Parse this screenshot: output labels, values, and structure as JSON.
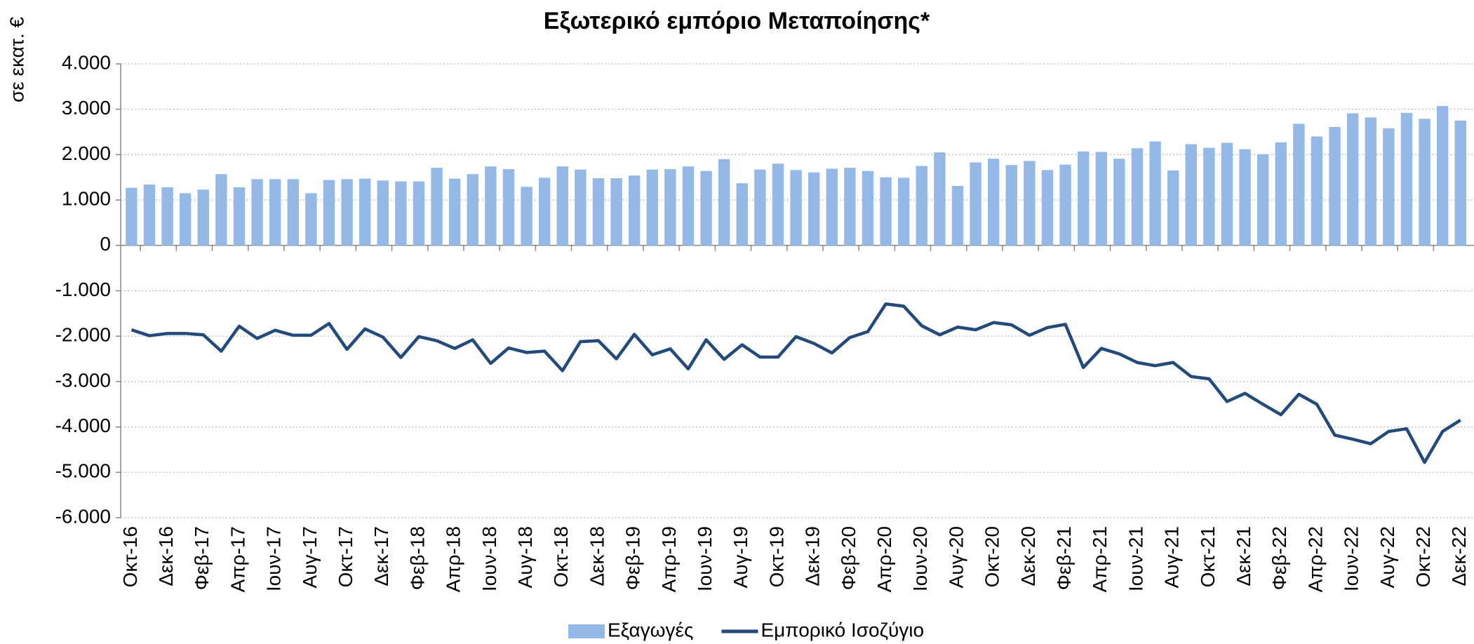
{
  "chart_data": {
    "type": "bar_line",
    "title": "Εξωτερικό εμπόριο Μεταποίησης*",
    "y_label": "σε εκατ. €",
    "categories": [
      "Οκτ-16",
      null,
      "Δεκ-16",
      null,
      "Φεβ-17",
      null,
      "Απρ-17",
      null,
      "Ιουν-17",
      null,
      "Αυγ-17",
      null,
      "Οκτ-17",
      null,
      "Δεκ-17",
      null,
      "Φεβ-18",
      null,
      "Απρ-18",
      null,
      "Ιουν-18",
      null,
      "Αυγ-18",
      null,
      "Οκτ-18",
      null,
      "Δεκ-18",
      null,
      "Φεβ-19",
      null,
      "Απρ-19",
      null,
      "Ιουν-19",
      null,
      "Αυγ-19",
      null,
      "Οκτ-19",
      null,
      "Δεκ-19",
      null,
      "Φεβ-20",
      null,
      "Απρ-20",
      null,
      "Ιουν-20",
      null,
      "Αυγ-20",
      null,
      "Οκτ-20",
      null,
      "Δεκ-20",
      null,
      "Φεβ-21",
      null,
      "Απρ-21",
      null,
      "Ιουν-21",
      null,
      "Αυγ-21",
      null,
      "Οκτ-21",
      null,
      "Δεκ-21",
      null,
      "Φεβ-22",
      null,
      "Απρ-22",
      null,
      "Ιουν-22",
      null,
      "Αυγ-22",
      null,
      "Οκτ-22",
      null,
      "Δεκ-22"
    ],
    "series": [
      {
        "name": "Εξαγωγές",
        "kind": "bar",
        "color": "#95b9e6",
        "values": [
          1270,
          1340,
          1280,
          1150,
          1230,
          1570,
          1280,
          1460,
          1460,
          1460,
          1150,
          1440,
          1460,
          1470,
          1430,
          1410,
          1410,
          1710,
          1470,
          1570,
          1740,
          1680,
          1290,
          1490,
          1740,
          1670,
          1480,
          1480,
          1540,
          1670,
          1680,
          1740,
          1640,
          1900,
          1370,
          1670,
          1800,
          1660,
          1610,
          1690,
          1710,
          1640,
          1500,
          1490,
          1750,
          2050,
          1310,
          1830,
          1910,
          1770,
          1860,
          1660,
          1780,
          2070,
          2060,
          1910,
          2140,
          2290,
          1650,
          2230,
          2150,
          2260,
          2120,
          2010,
          2270,
          2680,
          2400,
          2610,
          2910,
          2820,
          2580,
          2920,
          2790,
          3070,
          2750
        ]
      },
      {
        "name": "Εμπορικό Ισοζύγιο",
        "kind": "line",
        "color": "#234a7a",
        "values": [
          -1860,
          -1990,
          -1940,
          -1940,
          -1970,
          -2330,
          -1780,
          -2050,
          -1870,
          -1980,
          -1980,
          -1720,
          -2290,
          -1840,
          -2020,
          -2470,
          -2010,
          -2100,
          -2270,
          -2080,
          -2600,
          -2260,
          -2360,
          -2330,
          -2760,
          -2120,
          -2100,
          -2500,
          -1960,
          -2410,
          -2280,
          -2720,
          -2080,
          -2510,
          -2190,
          -2460,
          -2460,
          -2010,
          -2160,
          -2370,
          -2030,
          -1900,
          -1290,
          -1340,
          -1770,
          -1970,
          -1800,
          -1860,
          -1700,
          -1750,
          -1980,
          -1810,
          -1740,
          -2690,
          -2270,
          -2390,
          -2580,
          -2650,
          -2580,
          -2890,
          -2940,
          -3440,
          -3260,
          -3500,
          -3730,
          -3280,
          -3500,
          -4180,
          -4270,
          -4370,
          -4100,
          -4040,
          -4780,
          -4100,
          -3850
        ]
      }
    ],
    "ylim": [
      -6000,
      4000
    ],
    "yticks": [
      {
        "value": -6000,
        "label": "-6.000"
      },
      {
        "value": -5000,
        "label": "-5.000"
      },
      {
        "value": -4000,
        "label": "-4.000"
      },
      {
        "value": -3000,
        "label": "-3.000"
      },
      {
        "value": -2000,
        "label": "-2.000"
      },
      {
        "value": -1000,
        "label": "-1.000"
      },
      0,
      {
        "value": 1000,
        "label": "1.000"
      },
      {
        "value": 2000,
        "label": "2.000"
      },
      {
        "value": 3000,
        "label": "3.000"
      },
      {
        "value": 4000,
        "label": "4.000"
      }
    ],
    "grid": true,
    "legend": "bottom"
  }
}
